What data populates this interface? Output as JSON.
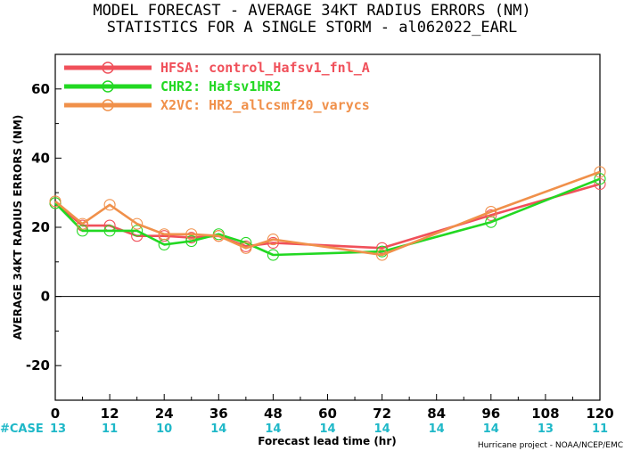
{
  "title_line1": "MODEL FORECAST - AVERAGE 34KT RADIUS ERRORS (NM)",
  "title_line2": "STATISTICS FOR A SINGLE STORM - al062022_EARL",
  "credit": "Hurricane project - NOAA/NCEP/EMC",
  "case_prefix": "#CASE",
  "chart_data": {
    "type": "line",
    "title": "MODEL FORECAST - AVERAGE 34KT RADIUS ERRORS (NM)",
    "subtitle": "STATISTICS FOR A SINGLE STORM - al062022_EARL",
    "xlabel": "Forecast lead time (hr)",
    "ylabel": "AVERAGE 34KT RADIUS ERRORS (NM)",
    "xlim": [
      0,
      120
    ],
    "ylim": [
      -30,
      70
    ],
    "xticks": [
      0,
      12,
      24,
      36,
      48,
      60,
      72,
      84,
      96,
      108,
      120
    ],
    "yticks": [
      -20,
      0,
      20,
      40,
      60
    ],
    "zero_line": true,
    "legend_position": "top-left",
    "cases": {
      "x": [
        0,
        12,
        24,
        36,
        48,
        60,
        72,
        84,
        96,
        108,
        120
      ],
      "counts": [
        "13",
        "11",
        "10",
        "14",
        "14",
        "14",
        "14",
        "14",
        "14",
        "13",
        "11"
      ]
    },
    "series": [
      {
        "name": "HFSA: control_Hafsv1_fnl_A",
        "color": "#f0505a",
        "x": [
          0,
          6,
          12,
          18,
          24,
          30,
          36,
          42,
          48,
          72,
          96,
          120
        ],
        "values": [
          27,
          20.5,
          20.5,
          17.5,
          17.5,
          17,
          17.5,
          14.5,
          15.5,
          14,
          23.5,
          32.5
        ]
      },
      {
        "name": "CHR2: Hafsv1HR2",
        "color": "#22d822",
        "x": [
          0,
          6,
          12,
          18,
          24,
          30,
          36,
          42,
          48,
          72,
          96,
          120
        ],
        "values": [
          27,
          19,
          19,
          19,
          15,
          16,
          18,
          15.5,
          12,
          13,
          21.5,
          34
        ]
      },
      {
        "name": "X2VC: HR2_allcsmf20_varycs",
        "color": "#f0904a",
        "x": [
          0,
          6,
          12,
          18,
          24,
          30,
          36,
          42,
          48,
          72,
          96,
          120
        ],
        "values": [
          27.5,
          21,
          26.5,
          21,
          18,
          18,
          17.5,
          14,
          16.5,
          12,
          24.5,
          36
        ]
      }
    ]
  }
}
